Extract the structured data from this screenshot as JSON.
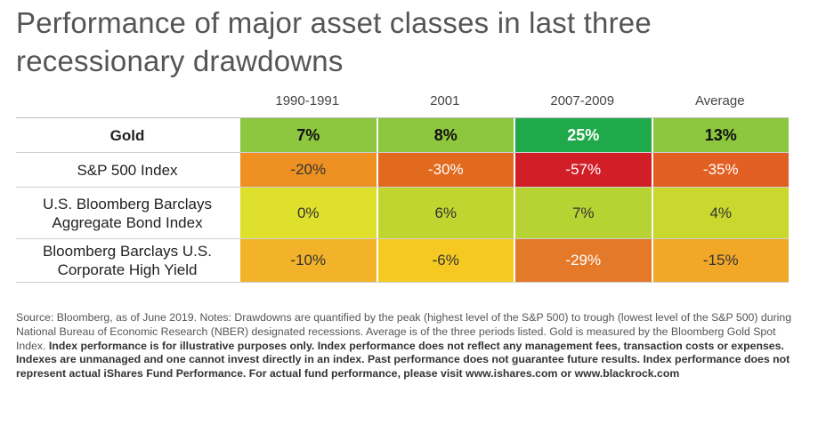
{
  "title": "Performance of major asset classes in last three recessionary drawdowns",
  "chart_data": {
    "type": "table",
    "columns": [
      "1990-1991",
      "2001",
      "2007-2009",
      "Average"
    ],
    "rows": [
      {
        "label": "Gold",
        "values": [
          "7%",
          "8%",
          "25%",
          "13%"
        ],
        "numeric": [
          7,
          8,
          25,
          13
        ],
        "colors": [
          "#8dc63f",
          "#8dc63f",
          "#1fa94a",
          "#8dc63f"
        ]
      },
      {
        "label": "S&P 500 Index",
        "values": [
          "-20%",
          "-30%",
          "-57%",
          "-35%"
        ],
        "numeric": [
          -20,
          -30,
          -57,
          -35
        ],
        "colors": [
          "#ee9122",
          "#e16a1f",
          "#d21f27",
          "#e15f22"
        ]
      },
      {
        "label": "U.S. Bloomberg Barclays Aggregate Bond Index",
        "values": [
          "0%",
          "6%",
          "7%",
          "4%"
        ],
        "numeric": [
          0,
          6,
          7,
          4
        ],
        "colors": [
          "#dfe02b",
          "#c0d52f",
          "#b7d233",
          "#c9d82f"
        ]
      },
      {
        "label": "Bloomberg Barclays U.S. Corporate High Yield",
        "values": [
          "-10%",
          "-6%",
          "-29%",
          "-15%"
        ],
        "numeric": [
          -10,
          -6,
          -29,
          -15
        ],
        "colors": [
          "#f2b32a",
          "#f5c822",
          "#e5792a",
          "#f1a728"
        ]
      }
    ]
  },
  "footnote": {
    "normal": "Source: Bloomberg, as of June 2019. Notes: Drawdowns are quantified by the peak (highest level of the S&P 500) to trough (lowest level of the S&P 500) during National Bureau of Economic Research (NBER) designated recessions. Average is of the three periods listed. Gold is measured by the Bloomberg Gold Spot Index.",
    "bold": "Index performance is for illustrative purposes only. Index performance does not reflect any management fees, transaction costs or expenses. Indexes are unmanaged and one cannot invest directly in an index. Past performance does not guarantee future results. Index performance does not represent actual iShares Fund Performance. For actual fund performance, please visit www.ishares.com or www.blackrock.com"
  }
}
